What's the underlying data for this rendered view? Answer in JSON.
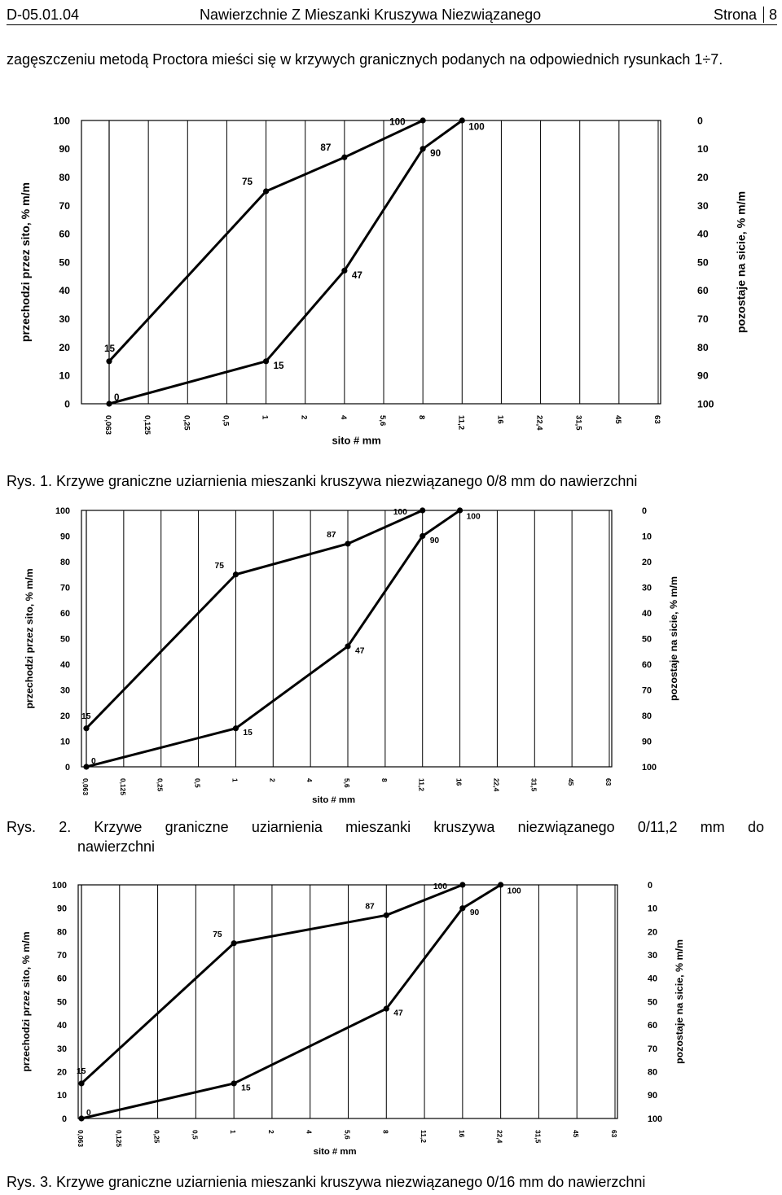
{
  "header": {
    "code": "D-05.01.04",
    "title": "Nawierzchnie Z Mieszanki Kruszywa Niezwiązanego",
    "page_label": "Strona",
    "page_number": "8"
  },
  "intro_text": "zagęszczeniu metodą Proctora mieści się w krzywych granicznych podanych na odpowiednich rysunkach 1÷7.",
  "figures": [
    {
      "caption": "Rys. 1. Krzywe graniczne uziarnienia mieszanki kruszywa niezwiązanego 0/8 mm do nawierzchni",
      "chart_data": {
        "type": "line",
        "xlabel": "sito # mm",
        "ylabel_left": "przechodzi przez sito, % m/m",
        "ylabel_right": "pozostaje na sicie, % m/m",
        "x_ticks": [
          "0,063",
          "0,125",
          "0,25",
          "0,5",
          "1",
          "2",
          "4",
          "5,6",
          "8",
          "11,2",
          "16",
          "22,4",
          "31,5",
          "45",
          "63"
        ],
        "y_ticks_left": [
          0,
          10,
          20,
          30,
          40,
          50,
          60,
          70,
          80,
          90,
          100
        ],
        "y_ticks_right": [
          100,
          90,
          80,
          70,
          60,
          50,
          40,
          30,
          20,
          10,
          0
        ],
        "ylim": [
          0,
          100
        ],
        "series": [
          {
            "points": [
              [
                "0,063",
                15
              ],
              [
                "1",
                75
              ],
              [
                "4",
                87
              ],
              [
                "8",
                100
              ]
            ],
            "labels": [
              "15",
              "75",
              "87",
              "100"
            ]
          },
          {
            "points": [
              [
                "0,063",
                0
              ],
              [
                "1",
                15
              ],
              [
                "4",
                47
              ],
              [
                "8",
                90
              ],
              [
                "11,2",
                100
              ]
            ],
            "labels": [
              "0",
              "15",
              "47",
              "90",
              "100"
            ]
          }
        ]
      }
    },
    {
      "caption_lead": "Rys. 2.",
      "caption_rest": "Krzywe graniczne uziarnienia mieszanki kruszywa niezwiązanego 0/11,2 mm do",
      "caption_line2": "nawierzchni",
      "chart_data": {
        "type": "line",
        "xlabel": "sito # mm",
        "ylabel_left": "przechodzi przez sito, % m/m",
        "ylabel_right": "pozostaje na sicie, % m/m",
        "x_ticks": [
          "0,063",
          "0,125",
          "0,25",
          "0,5",
          "1",
          "2",
          "4",
          "5,6",
          "8",
          "11,2",
          "16",
          "22,4",
          "31,5",
          "45",
          "63"
        ],
        "y_ticks_left": [
          0,
          10,
          20,
          30,
          40,
          50,
          60,
          70,
          80,
          90,
          100
        ],
        "y_ticks_right": [
          100,
          90,
          80,
          70,
          60,
          50,
          40,
          30,
          20,
          10,
          0
        ],
        "ylim": [
          0,
          100
        ],
        "series": [
          {
            "points": [
              [
                "0,063",
                15
              ],
              [
                "1",
                75
              ],
              [
                "5,6",
                87
              ],
              [
                "11,2",
                100
              ]
            ],
            "labels": [
              "15",
              "75",
              "87",
              "100"
            ]
          },
          {
            "points": [
              [
                "0,063",
                0
              ],
              [
                "1",
                15
              ],
              [
                "5,6",
                47
              ],
              [
                "11,2",
                90
              ],
              [
                "16",
                100
              ]
            ],
            "labels": [
              "0",
              "15",
              "47",
              "90",
              "100"
            ]
          }
        ]
      }
    },
    {
      "caption": "Rys. 3. Krzywe graniczne uziarnienia mieszanki kruszywa niezwiązanego 0/16 mm do nawierzchni",
      "chart_data": {
        "type": "line",
        "xlabel": "sito # mm",
        "ylabel_left": "przechodzi przez sito, % m/m",
        "ylabel_right": "pozostaje na sicie, % m/m",
        "x_ticks": [
          "0,063",
          "0,125",
          "0,25",
          "0,5",
          "1",
          "2",
          "4",
          "5,6",
          "8",
          "11,2",
          "16",
          "22,4",
          "31,5",
          "45",
          "63"
        ],
        "y_ticks_left": [
          0,
          10,
          20,
          30,
          40,
          50,
          60,
          70,
          80,
          90,
          100
        ],
        "y_ticks_right": [
          100,
          90,
          80,
          70,
          60,
          50,
          40,
          30,
          20,
          10,
          0
        ],
        "ylim": [
          0,
          100
        ],
        "series": [
          {
            "points": [
              [
                "0,063",
                15
              ],
              [
                "1",
                75
              ],
              [
                "8",
                87
              ],
              [
                "16",
                100
              ]
            ],
            "labels": [
              "15",
              "75",
              "87",
              "100"
            ]
          },
          {
            "points": [
              [
                "0,063",
                0
              ],
              [
                "1",
                15
              ],
              [
                "8",
                47
              ],
              [
                "16",
                90
              ],
              [
                "22,4",
                100
              ]
            ],
            "labels": [
              "0",
              "15",
              "47",
              "90",
              "100"
            ]
          }
        ]
      }
    }
  ]
}
